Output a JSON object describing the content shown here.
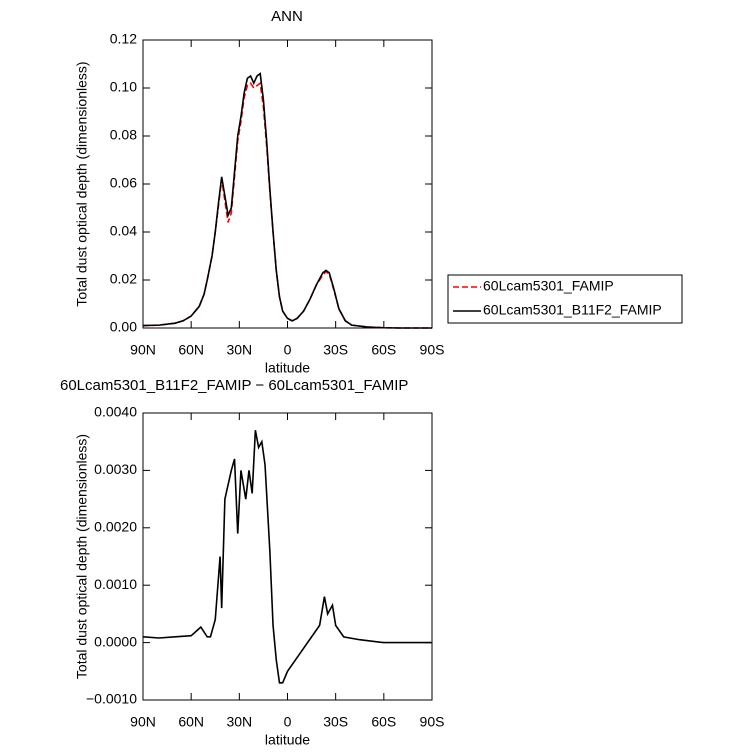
{
  "chart_data": [
    {
      "type": "line",
      "title": "ANN",
      "ylabel": "Total dust optical depth (dimensionless)",
      "xlabel": "latitude",
      "x": [
        90,
        80,
        70,
        65,
        60,
        55,
        52,
        50,
        47,
        45,
        43,
        41,
        39,
        37,
        35,
        33,
        31,
        29,
        27,
        25,
        23,
        21,
        19,
        17,
        15,
        13,
        11,
        9,
        7,
        5,
        3,
        0,
        -3,
        -6,
        -10,
        -14,
        -18,
        -22,
        -24,
        -26,
        -29,
        -32,
        -36,
        -40,
        -50,
        -60,
        -70,
        -80,
        -90
      ],
      "series": [
        {
          "name": "60Lcam5301_FAMIP",
          "color": "#ff0000",
          "linestyle": "dashed",
          "values": [
            0.001,
            0.0012,
            0.002,
            0.003,
            0.005,
            0.009,
            0.014,
            0.02,
            0.03,
            0.04,
            0.051,
            0.062,
            0.053,
            0.044,
            0.048,
            0.063,
            0.078,
            0.086,
            0.096,
            0.101,
            0.102,
            0.1,
            0.101,
            0.102,
            0.092,
            0.076,
            0.057,
            0.04,
            0.024,
            0.013,
            0.007,
            0.004,
            0.003,
            0.004,
            0.007,
            0.012,
            0.018,
            0.022,
            0.0235,
            0.0225,
            0.0155,
            0.008,
            0.003,
            0.0012,
            0.0004,
            0.0001,
            0,
            0,
            0
          ]
        },
        {
          "name": "60Lcam5301_B11F2_FAMIP",
          "color": "#000000",
          "linestyle": "solid",
          "values": [
            0.001,
            0.0012,
            0.002,
            0.003,
            0.005,
            0.009,
            0.014,
            0.02,
            0.03,
            0.04,
            0.052,
            0.063,
            0.055,
            0.047,
            0.05,
            0.065,
            0.08,
            0.088,
            0.098,
            0.104,
            0.105,
            0.102,
            0.105,
            0.106,
            0.095,
            0.078,
            0.058,
            0.04,
            0.024,
            0.013,
            0.007,
            0.004,
            0.003,
            0.004,
            0.007,
            0.012,
            0.018,
            0.023,
            0.024,
            0.023,
            0.016,
            0.008,
            0.003,
            0.0012,
            0.0004,
            0.0001,
            0,
            0,
            0
          ]
        }
      ],
      "xlim": [
        90,
        -90
      ],
      "xticks": [
        {
          "value": 90,
          "label": "90N"
        },
        {
          "value": 60,
          "label": "60N"
        },
        {
          "value": 30,
          "label": "30N"
        },
        0,
        {
          "value": -30,
          "label": "30S"
        },
        {
          "value": -60,
          "label": "60S"
        },
        {
          "value": -90,
          "label": "90S"
        }
      ],
      "ylim": [
        0,
        0.12
      ],
      "yticks": [
        {
          "value": 0,
          "label": "0.00"
        },
        {
          "value": 0.02,
          "label": "0.02"
        },
        {
          "value": 0.04,
          "label": "0.04"
        },
        {
          "value": 0.06,
          "label": "0.06"
        },
        {
          "value": 0.08,
          "label": "0.08"
        },
        {
          "value": 0.1,
          "label": "0.10"
        },
        {
          "value": 0.12,
          "label": "0.12"
        }
      ],
      "legend": "outside-right"
    },
    {
      "type": "line",
      "title": "60Lcam5301_B11F2_FAMIP − 60Lcam5301_FAMIP",
      "ylabel": "Total dust optical depth (dimensionless)",
      "xlabel": "latitude",
      "x": [
        90,
        80,
        70,
        60,
        54,
        50,
        48,
        45,
        42,
        41,
        39,
        35,
        33,
        31,
        29,
        26,
        24,
        22,
        20,
        18,
        16,
        14,
        11,
        9,
        7,
        5,
        3,
        0,
        -5,
        -10,
        -15,
        -20,
        -23,
        -25,
        -28,
        -30,
        -35,
        -45,
        -60,
        -90
      ],
      "series": [
        {
          "color": "#000000",
          "linestyle": "solid",
          "values": [
            0.0001,
            8e-05,
            0.0001,
            0.00012,
            0.00027,
            0.0001,
            0.0001,
            0.0004,
            0.0015,
            0.0006,
            0.0025,
            0.003,
            0.0032,
            0.0019,
            0.003,
            0.0025,
            0.003,
            0.0026,
            0.0037,
            0.0034,
            0.0035,
            0.0031,
            0.0016,
            0.0003,
            -0.0003,
            -0.0007,
            -0.0007,
            -0.0005,
            -0.0003,
            -0.0001,
            0.0001,
            0.0003,
            0.0008,
            0.0005,
            0.00065,
            0.0003,
            0.0001,
            5e-05,
            0,
            0
          ]
        }
      ],
      "xlim": [
        90,
        -90
      ],
      "xticks": [
        {
          "value": 90,
          "label": "90N"
        },
        {
          "value": 60,
          "label": "60N"
        },
        {
          "value": 30,
          "label": "30N"
        },
        0,
        {
          "value": -30,
          "label": "30S"
        },
        {
          "value": -60,
          "label": "60S"
        },
        {
          "value": -90,
          "label": "90S"
        }
      ],
      "ylim": [
        -0.001,
        0.004
      ],
      "yticks": [
        {
          "value": -0.001,
          "label": "−0.0010"
        },
        {
          "value": 0,
          "label": "0.0000"
        },
        {
          "value": 0.001,
          "label": "0.0010"
        },
        {
          "value": 0.002,
          "label": "0.0020"
        },
        {
          "value": 0.003,
          "label": "0.0030"
        },
        {
          "value": 0.004,
          "label": "0.0040"
        }
      ]
    }
  ]
}
